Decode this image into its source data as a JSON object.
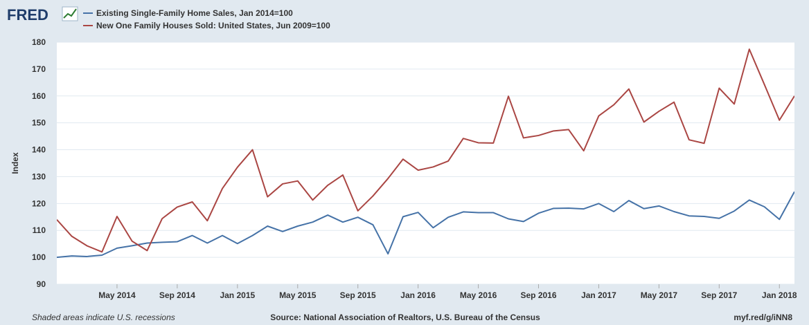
{
  "logo": {
    "text": "FRED",
    "icon": "line-chart-icon"
  },
  "footer": {
    "recession_note": "Shaded areas indicate U.S. recessions",
    "source": "Source: National Association of Realtors, U.S. Bureau of the Census",
    "link": "myf.red/g/iNN8"
  },
  "colors": {
    "background": "#e1e9f0",
    "plot": "#ffffff",
    "series_existing": "#4572a7",
    "series_new": "#aa4643",
    "grid": "#e1e9f0"
  },
  "chart_data": {
    "type": "line",
    "ylabel": "Index",
    "xlabel": "",
    "ylim": [
      90,
      180
    ],
    "yticks": [
      90,
      100,
      110,
      120,
      130,
      140,
      150,
      160,
      170,
      180
    ],
    "xtick_labels": [
      "May 2014",
      "Sep 2014",
      "Jan 2015",
      "May 2015",
      "Sep 2015",
      "Jan 2016",
      "May 2016",
      "Sep 2016",
      "Jan 2017",
      "May 2017",
      "Sep 2017",
      "Jan 2018"
    ],
    "x": [
      "2014-01",
      "2014-02",
      "2014-03",
      "2014-04",
      "2014-05",
      "2014-06",
      "2014-07",
      "2014-08",
      "2014-09",
      "2014-10",
      "2014-11",
      "2014-12",
      "2015-01",
      "2015-02",
      "2015-03",
      "2015-04",
      "2015-05",
      "2015-06",
      "2015-07",
      "2015-08",
      "2015-09",
      "2015-10",
      "2015-11",
      "2015-12",
      "2016-01",
      "2016-02",
      "2016-03",
      "2016-04",
      "2016-05",
      "2016-06",
      "2016-07",
      "2016-08",
      "2016-09",
      "2016-10",
      "2016-11",
      "2016-12",
      "2017-01",
      "2017-02",
      "2017-03",
      "2017-04",
      "2017-05",
      "2017-06",
      "2017-07",
      "2017-08",
      "2017-09",
      "2017-10",
      "2017-11",
      "2017-12",
      "2018-01",
      "2018-02"
    ],
    "grid": "horizontal",
    "legend_position": "top-left",
    "series": [
      {
        "name": "Existing Single-Family Home Sales, Jan 2014=100",
        "color": "#4572a7",
        "values": [
          100.0,
          100.5,
          100.3,
          100.8,
          103.4,
          104.3,
          105.3,
          105.6,
          105.8,
          108.1,
          105.3,
          108.1,
          105.1,
          108.1,
          111.6,
          109.6,
          111.6,
          113.1,
          115.7,
          113.1,
          114.9,
          112.1,
          101.3,
          115.1,
          116.7,
          111.0,
          114.9,
          116.9,
          116.6,
          116.6,
          114.3,
          113.3,
          116.4,
          118.2,
          118.3,
          118.0,
          120.0,
          117.0,
          121.1,
          118.1,
          119.1,
          117.0,
          115.4,
          115.2,
          114.5,
          117.2,
          121.3,
          118.8,
          114.1,
          124.4
        ]
      },
      {
        "name": "New One Family Houses Sold: United States, Jun 2009=100",
        "color": "#aa4643",
        "values": [
          114.0,
          107.8,
          104.3,
          102.0,
          115.2,
          106.0,
          102.5,
          114.4,
          118.7,
          120.6,
          113.6,
          125.6,
          133.5,
          140.0,
          122.5,
          127.3,
          128.4,
          121.3,
          126.8,
          130.6,
          117.3,
          122.8,
          129.3,
          136.5,
          132.4,
          133.6,
          135.8,
          144.2,
          142.6,
          142.5,
          159.9,
          144.4,
          145.3,
          147.0,
          147.5,
          139.6,
          152.6,
          156.7,
          162.6,
          150.3,
          154.3,
          157.7,
          143.7,
          142.4,
          162.9,
          157.0,
          177.4,
          164.3,
          151.0,
          160.0
        ]
      }
    ]
  }
}
